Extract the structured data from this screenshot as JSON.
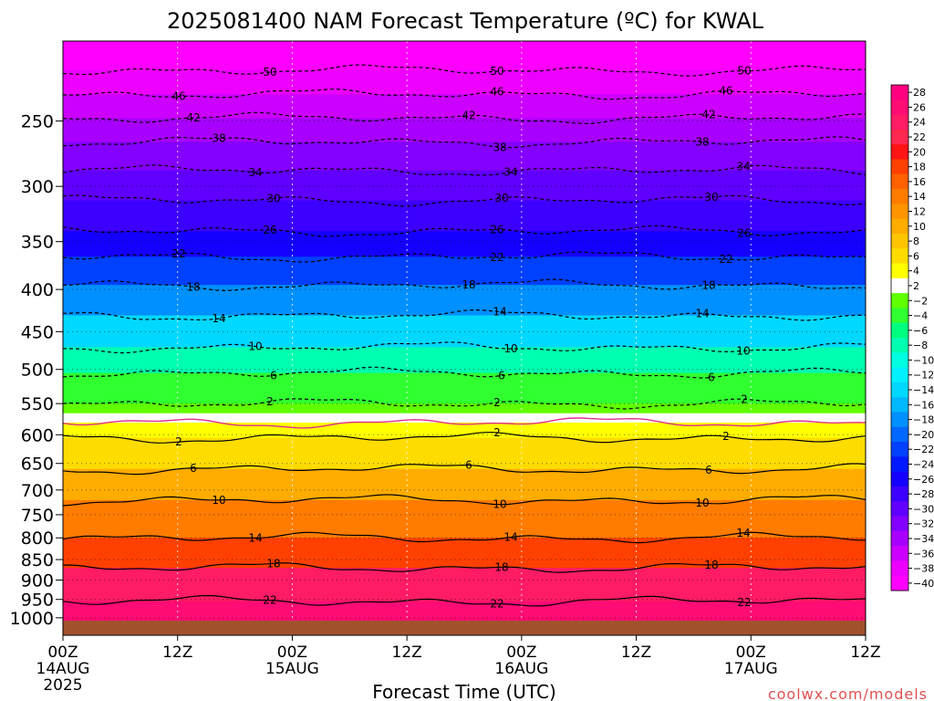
{
  "chart_data": {
    "type": "heatmap",
    "title": "2025081400 NAM Forecast Temperature (ºC) for KWAL",
    "xlabel": "Forecast Time (UTC)",
    "ylabel": "",
    "credit": "coolwx.com/models",
    "x_range_hours": [
      0,
      84
    ],
    "x_ticks": [
      {
        "hour": 0,
        "label": "00Z",
        "date": "14AUG",
        "year": "2025"
      },
      {
        "hour": 12,
        "label": "12Z",
        "date": "",
        "year": ""
      },
      {
        "hour": 24,
        "label": "00Z",
        "date": "15AUG",
        "year": ""
      },
      {
        "hour": 36,
        "label": "12Z",
        "date": "",
        "year": ""
      },
      {
        "hour": 48,
        "label": "00Z",
        "date": "16AUG",
        "year": ""
      },
      {
        "hour": 60,
        "label": "12Z",
        "date": "",
        "year": ""
      },
      {
        "hour": 72,
        "label": "00Z",
        "date": "17AUG",
        "year": ""
      },
      {
        "hour": 84,
        "label": "12Z",
        "date": "",
        "year": ""
      }
    ],
    "y_scale": "log-pressure",
    "y_range_hpa": [
      1050,
      200
    ],
    "y_ticks": [
      "250",
      "300",
      "350",
      "400",
      "450",
      "500",
      "550",
      "600",
      "650",
      "700",
      "750",
      "800",
      "850",
      "900",
      "950",
      "1000"
    ],
    "y_tick_values": [
      250,
      300,
      350,
      400,
      450,
      500,
      550,
      600,
      650,
      700,
      750,
      800,
      850,
      900,
      950,
      1000
    ],
    "surface_pressure_hpa": 1008,
    "freezing_level_hpa": 565,
    "isotherms_warm": [
      {
        "value": 2,
        "label": "2",
        "pressure_hpa": 605
      },
      {
        "value": 6,
        "label": "6",
        "pressure_hpa": 660
      },
      {
        "value": 10,
        "label": "10",
        "pressure_hpa": 720
      },
      {
        "value": 14,
        "label": "14",
        "pressure_hpa": 800
      },
      {
        "value": 18,
        "label": "18",
        "pressure_hpa": 870
      },
      {
        "value": 22,
        "label": "22",
        "pressure_hpa": 955
      }
    ],
    "isotherms_cold": [
      {
        "value": -2,
        "label": "2",
        "pressure_hpa": 550
      },
      {
        "value": -6,
        "label": "6",
        "pressure_hpa": 505
      },
      {
        "value": -10,
        "label": "10",
        "pressure_hpa": 470
      },
      {
        "value": -14,
        "label": "14",
        "pressure_hpa": 430
      },
      {
        "value": -18,
        "label": "18",
        "pressure_hpa": 395
      },
      {
        "value": -22,
        "label": "22",
        "pressure_hpa": 365
      },
      {
        "value": -26,
        "label": "26",
        "pressure_hpa": 340
      },
      {
        "value": -30,
        "label": "30",
        "pressure_hpa": 312
      },
      {
        "value": -34,
        "label": "34",
        "pressure_hpa": 287
      },
      {
        "value": -38,
        "label": "38",
        "pressure_hpa": 265
      },
      {
        "value": -42,
        "label": "42",
        "pressure_hpa": 248
      },
      {
        "value": -46,
        "label": "46",
        "pressure_hpa": 232
      },
      {
        "value": -50,
        "label": "50",
        "pressure_hpa": 217
      }
    ],
    "colorbar": [
      {
        "label": "28",
        "color": "#ff0080"
      },
      {
        "label": "26",
        "color": "#ff0c74"
      },
      {
        "label": "24",
        "color": "#ff1c64"
      },
      {
        "label": "22",
        "color": "#ff2850"
      },
      {
        "label": "20",
        "color": "#ff1414"
      },
      {
        "label": "18",
        "color": "#ff4000"
      },
      {
        "label": "16",
        "color": "#ff6000"
      },
      {
        "label": "14",
        "color": "#ff7c00"
      },
      {
        "label": "12",
        "color": "#ff9400"
      },
      {
        "label": "10",
        "color": "#ffac00"
      },
      {
        "label": "8",
        "color": "#ffc400"
      },
      {
        "label": "6",
        "color": "#ffdc00"
      },
      {
        "label": "4",
        "color": "#ffff00"
      },
      {
        "label": "2",
        "color": "#ffffff"
      },
      {
        "label": "−2",
        "color": "#60ff00"
      },
      {
        "label": "−4",
        "color": "#30ff30"
      },
      {
        "label": "−6",
        "color": "#00ff80"
      },
      {
        "label": "−8",
        "color": "#00ffb0"
      },
      {
        "label": "−10",
        "color": "#00ffe0"
      },
      {
        "label": "−12",
        "color": "#00f0ff"
      },
      {
        "label": "−14",
        "color": "#00d8ff"
      },
      {
        "label": "−16",
        "color": "#00b8ff"
      },
      {
        "label": "−18",
        "color": "#0090ff"
      },
      {
        "label": "−20",
        "color": "#0068ff"
      },
      {
        "label": "−22",
        "color": "#0040ff"
      },
      {
        "label": "−24",
        "color": "#0018ff"
      },
      {
        "label": "−26",
        "color": "#1400ff"
      },
      {
        "label": "−28",
        "color": "#3c00ff"
      },
      {
        "label": "−30",
        "color": "#6000ff"
      },
      {
        "label": "−32",
        "color": "#8400ff"
      },
      {
        "label": "−34",
        "color": "#a800ff"
      },
      {
        "label": "−36",
        "color": "#cc00ff"
      },
      {
        "label": "−38",
        "color": "#ee00ff"
      },
      {
        "label": "−40",
        "color": "#ff00ff"
      }
    ],
    "colors": {
      "terrain": "#a0522d",
      "freezing_line": "#e0308a",
      "credit": "#e05050"
    }
  }
}
